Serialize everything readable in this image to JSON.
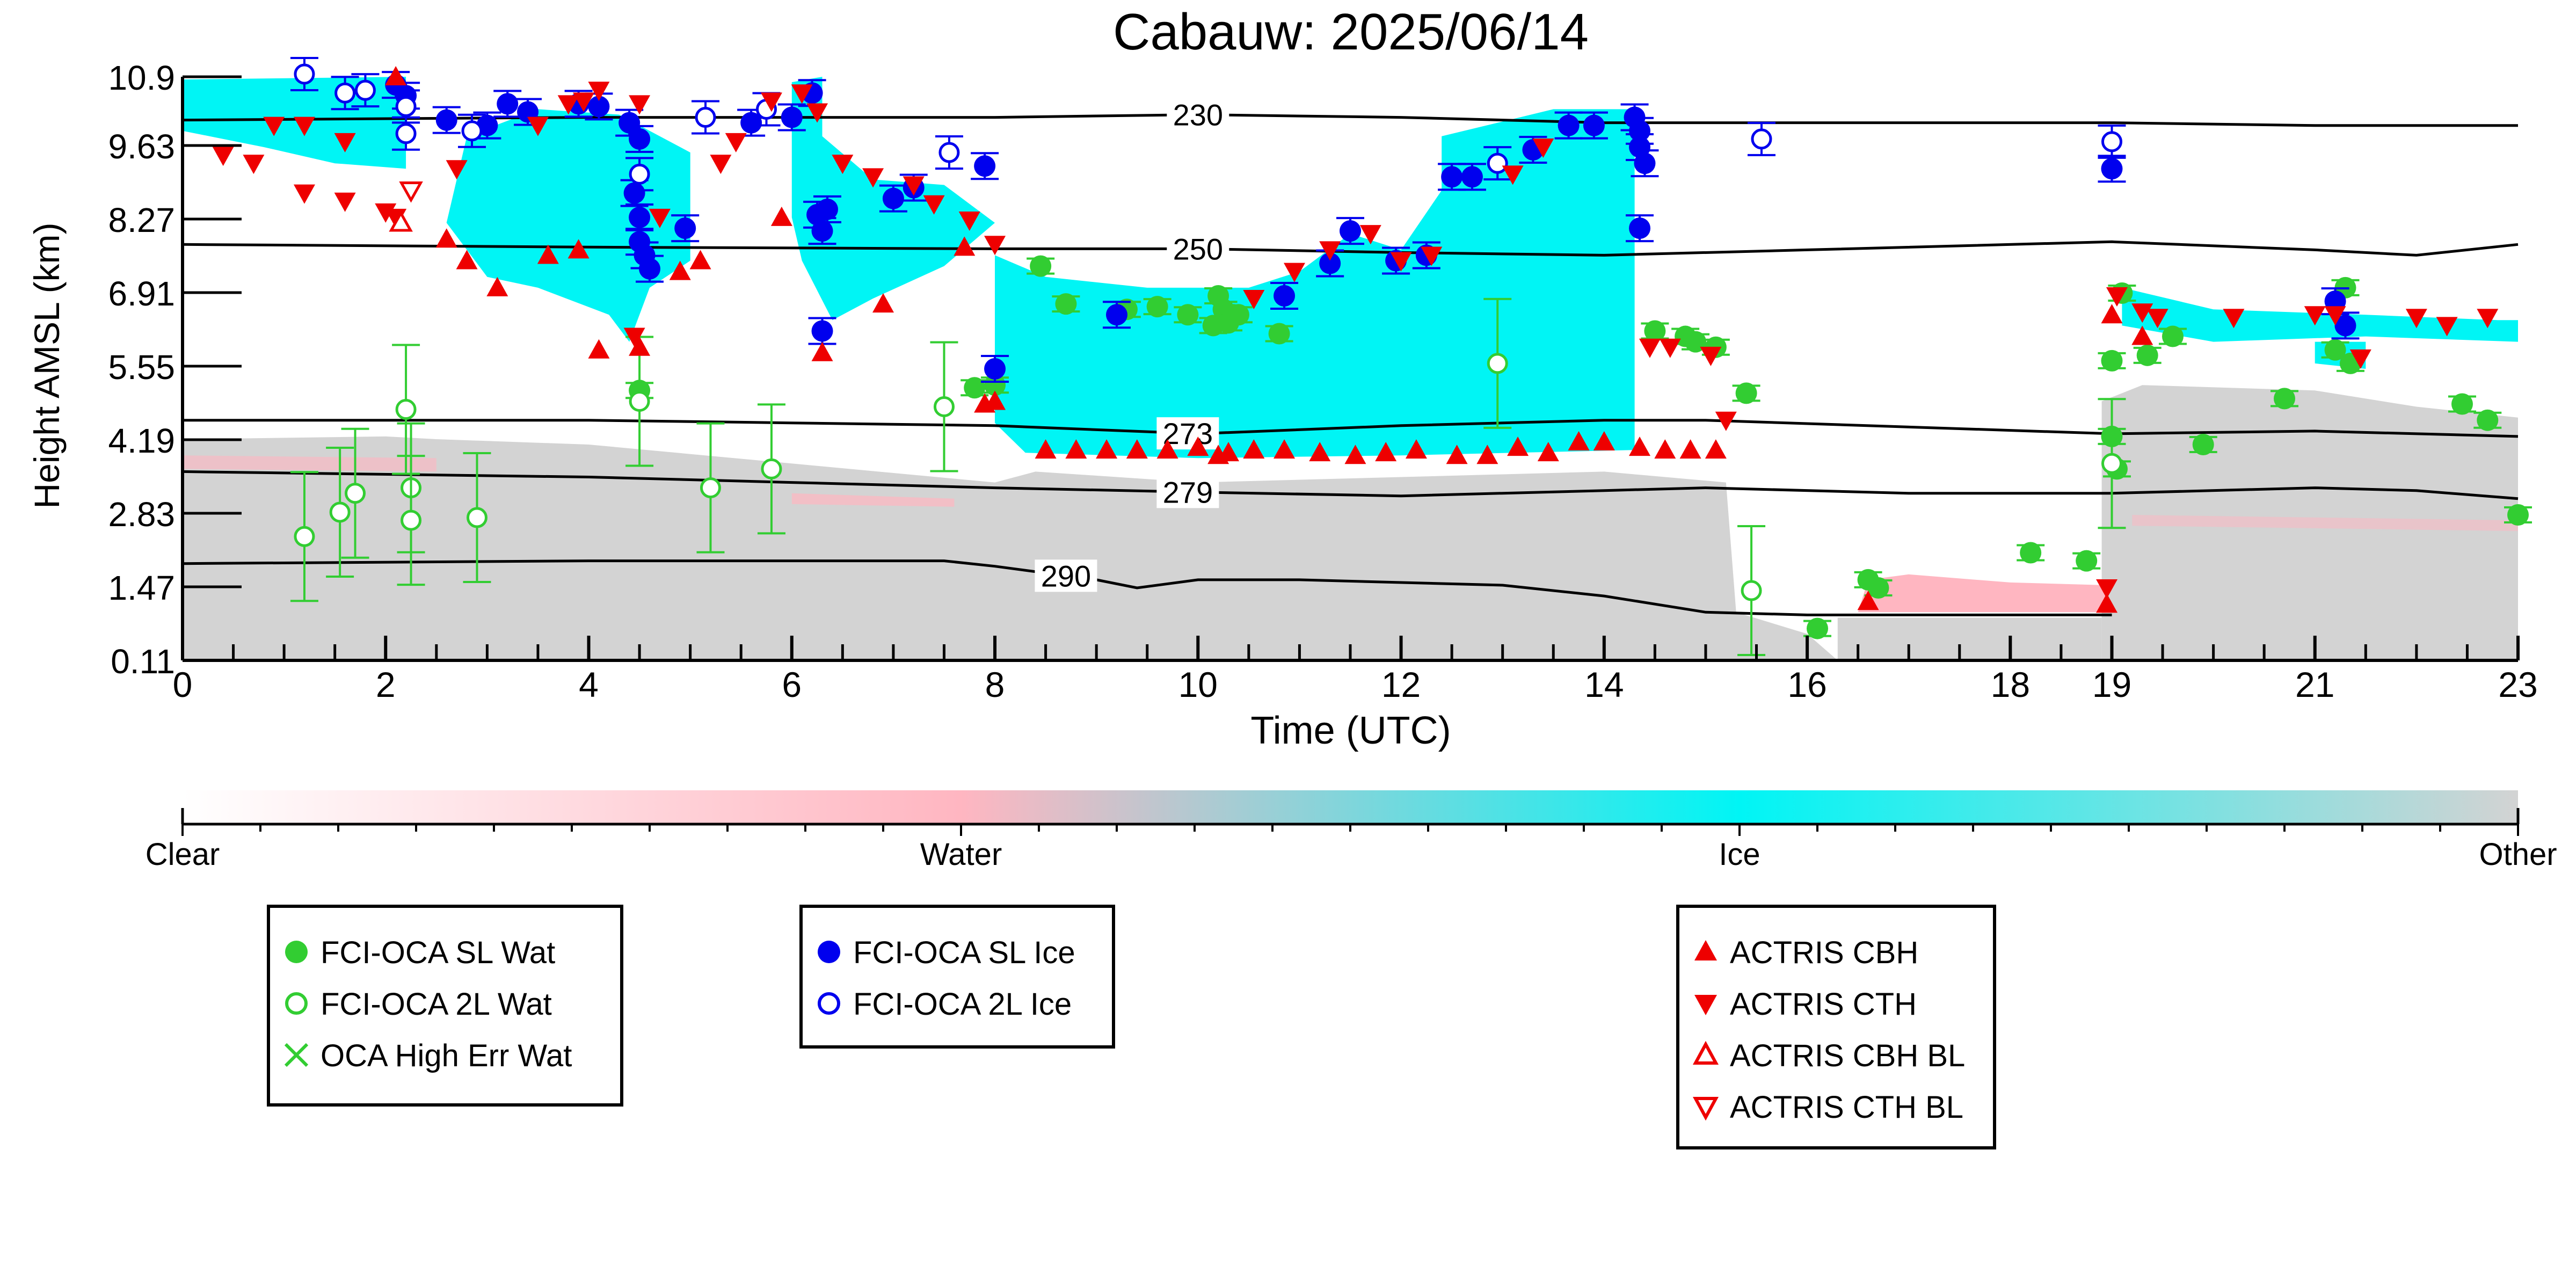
{
  "chart_data": {
    "type": "scatter",
    "title": "Cabauw: 2025/06/14",
    "xlabel": "Time (UTC)",
    "ylabel": "Height AMSL (km)",
    "xlim": [
      0,
      23
    ],
    "ylim": [
      0.11,
      10.9
    ],
    "xticks": [
      0,
      2,
      4,
      6,
      8,
      10,
      12,
      14,
      16,
      18,
      19,
      21,
      23
    ],
    "xtick_labels": [
      "0",
      "2",
      "4",
      "6",
      "8",
      "10",
      "12",
      "14",
      "16",
      "18",
      "19",
      "21",
      "23"
    ],
    "yticks": [
      0.11,
      1.47,
      2.83,
      4.19,
      5.55,
      6.91,
      8.27,
      9.63,
      10.9
    ],
    "ytick_labels": [
      "0.11",
      "1.47",
      "2.83",
      "4.19",
      "5.55",
      "6.91",
      "8.27",
      "9.63",
      "10.9"
    ],
    "grid": false,
    "colorbar": {
      "labels": [
        "Clear",
        "Water",
        "Ice",
        "Other"
      ],
      "colors": [
        "#ffffff",
        "#ffb6c1",
        "#00f5f5",
        "#d3d3d3"
      ]
    },
    "legend": {
      "placement": "bottom",
      "groups": [
        {
          "entries": [
            {
              "label": "FCI-OCA SL Wat",
              "marker": "circle-filled",
              "color": "#32cd32"
            },
            {
              "label": "FCI-OCA 2L Wat",
              "marker": "circle-open",
              "color": "#32cd32"
            },
            {
              "label": "OCA High Err Wat",
              "marker": "x",
              "color": "#32cd32"
            }
          ]
        },
        {
          "entries": [
            {
              "label": "FCI-OCA SL Ice",
              "marker": "circle-filled",
              "color": "#0000ee"
            },
            {
              "label": "FCI-OCA 2L Ice",
              "marker": "circle-open",
              "color": "#0000ee"
            }
          ]
        },
        {
          "entries": [
            {
              "label": "ACTRIS CBH",
              "marker": "triangle-up",
              "color": "#ee0000"
            },
            {
              "label": "ACTRIS CTH",
              "marker": "triangle-down",
              "color": "#ee0000"
            },
            {
              "label": "ACTRIS CBH BL",
              "marker": "triangle-up-open",
              "color": "#ee0000"
            },
            {
              "label": "ACTRIS CTH BL",
              "marker": "triangle-down-open",
              "color": "#ee0000"
            }
          ]
        }
      ]
    },
    "isotherms": [
      {
        "label": "230",
        "label_x": 10.0,
        "points": [
          [
            0,
            10.1
          ],
          [
            4,
            10.15
          ],
          [
            8,
            10.15
          ],
          [
            10,
            10.2
          ],
          [
            12,
            10.15
          ],
          [
            14,
            10.05
          ],
          [
            16,
            10.05
          ],
          [
            19,
            10.05
          ],
          [
            21,
            10.0
          ],
          [
            23,
            10.0
          ]
        ]
      },
      {
        "label": "250",
        "label_x": 10.0,
        "points": [
          [
            0,
            7.8
          ],
          [
            4,
            7.75
          ],
          [
            8,
            7.72
          ],
          [
            10,
            7.72
          ],
          [
            12,
            7.65
          ],
          [
            14,
            7.6
          ],
          [
            16,
            7.7
          ],
          [
            19,
            7.85
          ],
          [
            21,
            7.7
          ],
          [
            22,
            7.6
          ],
          [
            23,
            7.8
          ]
        ]
      },
      {
        "label": "273",
        "label_x": 9.9,
        "points": [
          [
            0,
            4.55
          ],
          [
            4,
            4.55
          ],
          [
            6,
            4.5
          ],
          [
            8,
            4.45
          ],
          [
            10,
            4.3
          ],
          [
            12,
            4.45
          ],
          [
            14,
            4.55
          ],
          [
            15,
            4.55
          ],
          [
            19,
            4.3
          ],
          [
            21,
            4.35
          ],
          [
            23,
            4.25
          ]
        ]
      },
      {
        "label": "279",
        "label_x": 9.9,
        "points": [
          [
            0,
            3.6
          ],
          [
            4,
            3.5
          ],
          [
            6,
            3.4
          ],
          [
            8,
            3.3
          ],
          [
            10,
            3.22
          ],
          [
            12,
            3.15
          ],
          [
            14,
            3.25
          ],
          [
            15,
            3.3
          ],
          [
            17,
            3.2
          ],
          [
            19,
            3.2
          ],
          [
            21,
            3.3
          ],
          [
            22,
            3.25
          ],
          [
            23,
            3.1
          ]
        ]
      },
      {
        "label": "290",
        "label_x": 8.7,
        "points": [
          [
            0,
            1.9
          ],
          [
            4,
            1.95
          ],
          [
            7.5,
            1.95
          ],
          [
            8,
            1.85
          ],
          [
            9,
            1.6
          ],
          [
            9.4,
            1.45
          ],
          [
            10,
            1.6
          ],
          [
            11,
            1.6
          ],
          [
            13,
            1.5
          ],
          [
            14,
            1.3
          ],
          [
            15,
            1.0
          ],
          [
            16,
            0.95
          ],
          [
            19,
            0.95
          ]
        ]
      }
    ],
    "series": [
      {
        "name": "FCI-OCA SL Wat",
        "points": [
          [
            4.5,
            5.1
          ],
          [
            7.8,
            5.15
          ],
          [
            8.0,
            5.2
          ],
          [
            8.45,
            7.4
          ],
          [
            8.7,
            6.7
          ],
          [
            9.3,
            6.6
          ],
          [
            9.6,
            6.65
          ],
          [
            9.9,
            6.5
          ],
          [
            10.15,
            6.3
          ],
          [
            10.2,
            6.85
          ],
          [
            10.25,
            6.6
          ],
          [
            10.3,
            6.35
          ],
          [
            10.35,
            6.5
          ],
          [
            10.4,
            6.5
          ],
          [
            10.8,
            6.15
          ],
          [
            14.5,
            6.2
          ],
          [
            14.8,
            6.1
          ],
          [
            14.9,
            6.0
          ],
          [
            15.1,
            5.9
          ],
          [
            15.4,
            5.05
          ],
          [
            16.1,
            0.7
          ],
          [
            16.6,
            1.6
          ],
          [
            16.7,
            1.45
          ],
          [
            18.2,
            2.1
          ],
          [
            18.75,
            1.95
          ],
          [
            19.0,
            4.25
          ],
          [
            19.0,
            5.65
          ],
          [
            19.05,
            3.65
          ],
          [
            19.1,
            6.9
          ],
          [
            19.35,
            5.75
          ],
          [
            19.6,
            6.1
          ],
          [
            19.9,
            4.1
          ],
          [
            20.7,
            4.95
          ],
          [
            21.2,
            5.85
          ],
          [
            21.3,
            7.0
          ],
          [
            21.35,
            5.6
          ],
          [
            22.45,
            4.85
          ],
          [
            22.7,
            4.55
          ],
          [
            23.0,
            2.8
          ]
        ]
      },
      {
        "name": "FCI-OCA 2L Wat",
        "points": [
          [
            1.2,
            2.4
          ],
          [
            1.55,
            2.85
          ],
          [
            1.7,
            3.2
          ],
          [
            2.2,
            4.75
          ],
          [
            2.25,
            3.3
          ],
          [
            2.25,
            2.7
          ],
          [
            2.9,
            2.75
          ],
          [
            4.5,
            4.9
          ],
          [
            5.2,
            3.3
          ],
          [
            5.8,
            3.65
          ],
          [
            7.5,
            4.8
          ],
          [
            12.95,
            5.6
          ],
          [
            15.45,
            1.4
          ],
          [
            19.0,
            3.75
          ]
        ]
      },
      {
        "name": "FCI-OCA SL Ice",
        "points": [
          [
            2.1,
            10.75
          ],
          [
            2.2,
            10.55
          ],
          [
            2.6,
            10.1
          ],
          [
            3.0,
            10.0
          ],
          [
            3.2,
            10.4
          ],
          [
            3.4,
            10.25
          ],
          [
            3.9,
            10.4
          ],
          [
            4.1,
            10.35
          ],
          [
            4.4,
            10.05
          ],
          [
            4.5,
            9.75
          ],
          [
            4.45,
            8.75
          ],
          [
            4.5,
            8.3
          ],
          [
            4.5,
            7.85
          ],
          [
            4.55,
            7.6
          ],
          [
            4.6,
            7.35
          ],
          [
            4.95,
            8.1
          ],
          [
            5.6,
            10.05
          ],
          [
            6.0,
            10.15
          ],
          [
            6.2,
            10.6
          ],
          [
            6.25,
            8.35
          ],
          [
            6.3,
            8.05
          ],
          [
            6.35,
            8.45
          ],
          [
            6.3,
            6.2
          ],
          [
            7.0,
            8.65
          ],
          [
            7.2,
            8.85
          ],
          [
            7.9,
            9.25
          ],
          [
            8.0,
            5.5
          ],
          [
            9.2,
            6.5
          ],
          [
            10.85,
            6.85
          ],
          [
            11.3,
            7.45
          ],
          [
            11.5,
            8.05
          ],
          [
            11.95,
            7.5
          ],
          [
            12.25,
            7.6
          ],
          [
            12.5,
            9.05
          ],
          [
            12.7,
            9.05
          ],
          [
            13.3,
            9.55
          ],
          [
            13.65,
            10.0
          ],
          [
            13.9,
            10.0
          ],
          [
            14.3,
            10.15
          ],
          [
            14.35,
            9.9
          ],
          [
            14.35,
            9.6
          ],
          [
            14.4,
            9.3
          ],
          [
            14.35,
            8.1
          ],
          [
            19.0,
            9.2
          ],
          [
            21.2,
            6.75
          ],
          [
            21.3,
            6.3
          ]
        ]
      },
      {
        "name": "FCI-OCA 2L Ice",
        "points": [
          [
            1.2,
            10.95
          ],
          [
            1.6,
            10.6
          ],
          [
            1.8,
            10.65
          ],
          [
            2.2,
            10.35
          ],
          [
            2.2,
            9.85
          ],
          [
            2.85,
            9.9
          ],
          [
            4.5,
            9.1
          ],
          [
            5.15,
            10.15
          ],
          [
            5.75,
            10.3
          ],
          [
            7.55,
            9.5
          ],
          [
            12.95,
            9.3
          ],
          [
            15.55,
            9.75
          ],
          [
            19.0,
            9.7
          ]
        ]
      },
      {
        "name": "ACTRIS CBH",
        "points": [
          [
            2.1,
            10.9
          ],
          [
            2.6,
            7.9
          ],
          [
            2.8,
            7.5
          ],
          [
            3.1,
            7.0
          ],
          [
            3.6,
            7.6
          ],
          [
            3.9,
            7.7
          ],
          [
            4.1,
            5.85
          ],
          [
            4.5,
            5.9
          ],
          [
            4.9,
            7.3
          ],
          [
            5.1,
            7.5
          ],
          [
            5.9,
            8.3
          ],
          [
            6.3,
            5.8
          ],
          [
            6.9,
            6.7
          ],
          [
            7.7,
            7.75
          ],
          [
            7.9,
            4.85
          ],
          [
            8.0,
            4.9
          ],
          [
            8.5,
            4.0
          ],
          [
            8.8,
            4.0
          ],
          [
            9.1,
            4.0
          ],
          [
            9.4,
            4.0
          ],
          [
            9.7,
            4.0
          ],
          [
            10.0,
            4.05
          ],
          [
            10.2,
            3.9
          ],
          [
            10.3,
            3.95
          ],
          [
            10.55,
            4.0
          ],
          [
            10.85,
            4.0
          ],
          [
            11.2,
            3.95
          ],
          [
            11.55,
            3.9
          ],
          [
            11.85,
            3.95
          ],
          [
            12.15,
            4.0
          ],
          [
            12.55,
            3.9
          ],
          [
            12.85,
            3.9
          ],
          [
            13.15,
            4.05
          ],
          [
            13.45,
            3.95
          ],
          [
            13.75,
            4.15
          ],
          [
            14.0,
            4.15
          ],
          [
            14.35,
            4.05
          ],
          [
            14.6,
            4.0
          ],
          [
            14.85,
            4.0
          ],
          [
            15.1,
            4.0
          ],
          [
            16.6,
            1.2
          ],
          [
            18.95,
            1.15
          ],
          [
            19.0,
            6.5
          ],
          [
            19.3,
            6.1
          ]
        ]
      },
      {
        "name": "ACTRIS CTH",
        "points": [
          [
            0.4,
            9.45
          ],
          [
            0.7,
            9.3
          ],
          [
            0.9,
            10.0
          ],
          [
            1.2,
            10.0
          ],
          [
            1.2,
            8.75
          ],
          [
            1.6,
            8.6
          ],
          [
            1.6,
            9.7
          ],
          [
            2.0,
            8.4
          ],
          [
            2.1,
            8.3
          ],
          [
            2.7,
            9.2
          ],
          [
            3.5,
            10.0
          ],
          [
            3.8,
            10.4
          ],
          [
            3.95,
            10.45
          ],
          [
            4.1,
            10.65
          ],
          [
            4.5,
            10.4
          ],
          [
            4.45,
            6.1
          ],
          [
            4.7,
            8.3
          ],
          [
            5.3,
            9.3
          ],
          [
            5.45,
            9.7
          ],
          [
            5.8,
            10.45
          ],
          [
            6.1,
            10.6
          ],
          [
            6.25,
            10.25
          ],
          [
            6.5,
            9.3
          ],
          [
            6.8,
            9.05
          ],
          [
            7.2,
            8.9
          ],
          [
            7.4,
            8.55
          ],
          [
            7.75,
            8.25
          ],
          [
            8.0,
            7.8
          ],
          [
            10.55,
            6.8
          ],
          [
            10.95,
            7.3
          ],
          [
            11.3,
            7.7
          ],
          [
            11.7,
            8.0
          ],
          [
            12.0,
            7.5
          ],
          [
            12.3,
            7.6
          ],
          [
            13.1,
            9.1
          ],
          [
            13.4,
            9.6
          ],
          [
            14.45,
            5.9
          ],
          [
            14.65,
            5.9
          ],
          [
            15.05,
            5.75
          ],
          [
            15.2,
            4.55
          ],
          [
            18.95,
            1.45
          ],
          [
            19.05,
            6.85
          ],
          [
            19.3,
            6.55
          ],
          [
            19.45,
            6.45
          ],
          [
            20.2,
            6.45
          ],
          [
            21.0,
            6.5
          ],
          [
            21.2,
            6.5
          ],
          [
            21.45,
            5.7
          ],
          [
            22.0,
            6.45
          ],
          [
            22.3,
            6.3
          ],
          [
            22.7,
            6.45
          ]
        ]
      },
      {
        "name": "ACTRIS CBH BL",
        "points": [
          [
            2.15,
            8.2
          ]
        ]
      },
      {
        "name": "ACTRIS CTH BL",
        "points": [
          [
            2.25,
            8.8
          ]
        ]
      }
    ]
  }
}
